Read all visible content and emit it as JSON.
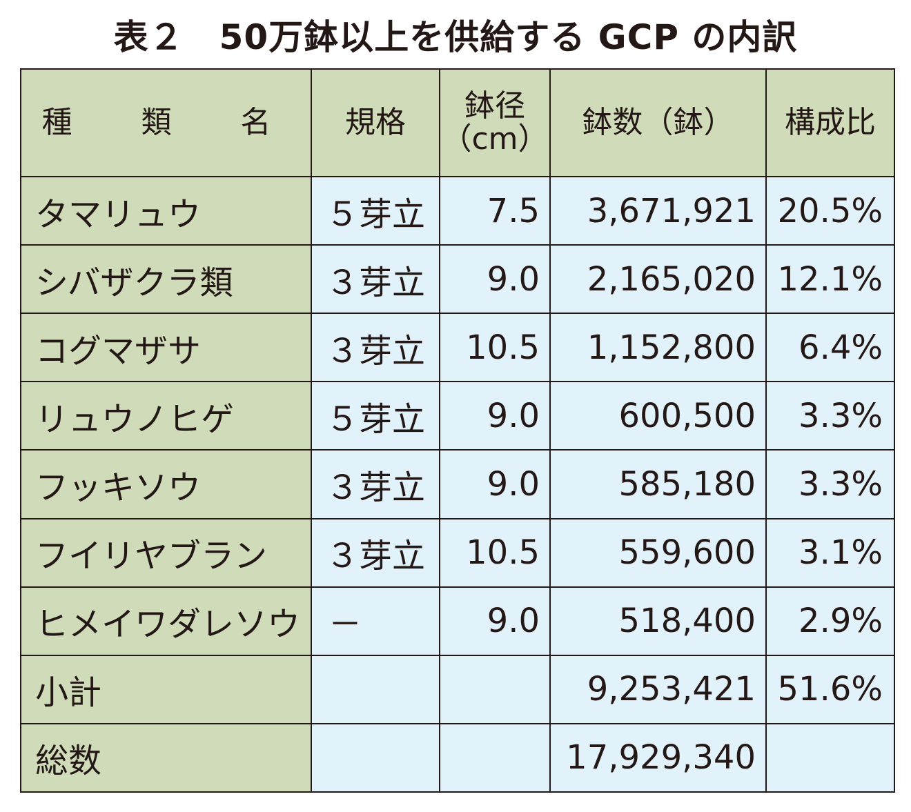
{
  "chart_data": {
    "type": "table",
    "title": "表２　50万鉢以上を供給する GCP の内訳",
    "headers": {
      "name": "種　類　名",
      "spec": "規格",
      "diameter_line1": "鉢径",
      "diameter_line2": "（cm）",
      "count": "鉢数（鉢）",
      "ratio": "構成比"
    },
    "rows": [
      {
        "name": "タマリュウ",
        "spec": "５芽立",
        "diameter": "7.5",
        "count": "3,671,921",
        "ratio": "20.5%"
      },
      {
        "name": "シバザクラ類",
        "spec": "３芽立",
        "diameter": "9.0",
        "count": "2,165,020",
        "ratio": "12.1%"
      },
      {
        "name": "コグマザサ",
        "spec": "３芽立",
        "diameter": "10.5",
        "count": "1,152,800",
        "ratio": "6.4%"
      },
      {
        "name": "リュウノヒゲ",
        "spec": "５芽立",
        "diameter": "9.0",
        "count": "600,500",
        "ratio": "3.3%"
      },
      {
        "name": "フッキソウ",
        "spec": "３芽立",
        "diameter": "9.0",
        "count": "585,180",
        "ratio": "3.3%"
      },
      {
        "name": "フイリヤブラン",
        "spec": "３芽立",
        "diameter": "10.5",
        "count": "559,600",
        "ratio": "3.1%"
      },
      {
        "name": "ヒメイワダレソウ",
        "spec": "－",
        "diameter": "9.0",
        "count": "518,400",
        "ratio": "2.9%"
      }
    ],
    "subtotal": {
      "label": "小計",
      "count": "9,253,421",
      "ratio": "51.6%"
    },
    "total": {
      "label": "総数",
      "count": "17,929,340"
    },
    "colors": {
      "header_bg": "#d0dcb9",
      "value_bg": "#e2f2fb",
      "border": "#231815"
    }
  }
}
